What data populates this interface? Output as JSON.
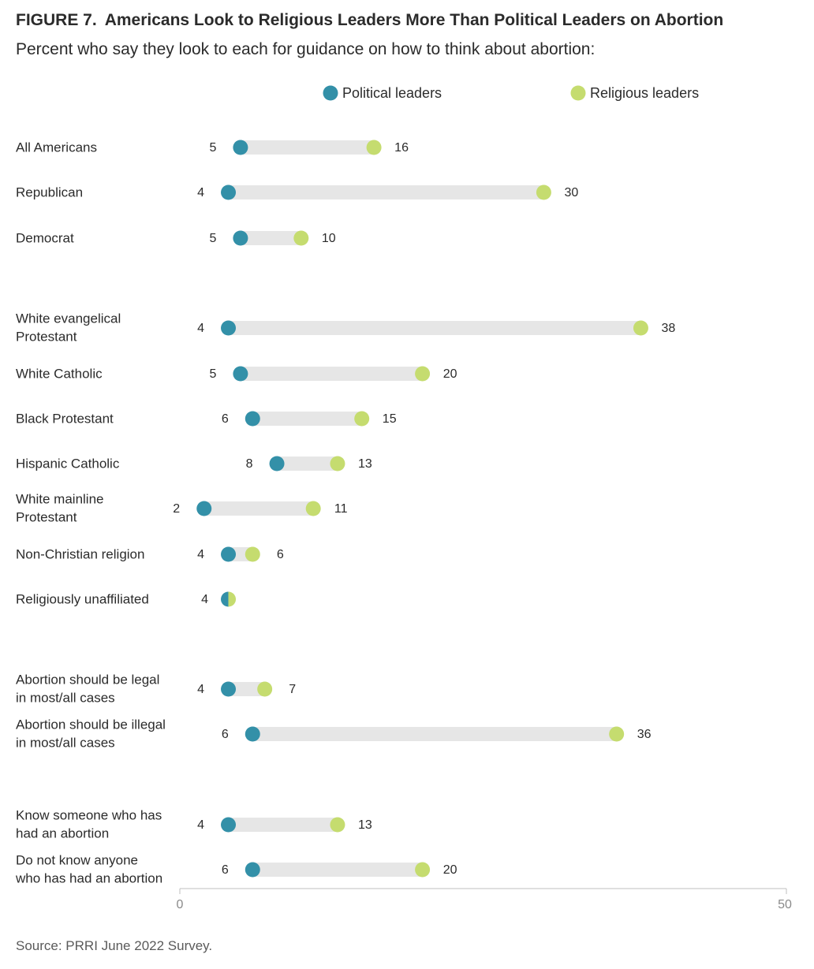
{
  "figure": {
    "label": "FIGURE 7.",
    "title": "Americans Look to Religious Leaders More Than Political Leaders on Abortion",
    "subtitle": "Percent who say they look to each for guidance on how to think about abortion:",
    "source": "Source: PRRI June 2022 Survey."
  },
  "colors": {
    "political": "#3390a8",
    "religious": "#c5dc6f",
    "bar": "#e6e6e6",
    "axis": "#bfbfbf"
  },
  "chart_data": {
    "type": "dumbbell",
    "legend_position": "top-center",
    "xlim": [
      0,
      50
    ],
    "ticks": [
      "0",
      "50"
    ],
    "series": [
      {
        "name": "Political leaders",
        "values": [
          5,
          4,
          5,
          4,
          5,
          6,
          8,
          2,
          4,
          4,
          4,
          6,
          4,
          6
        ]
      },
      {
        "name": "Religious leaders",
        "values": [
          16,
          30,
          10,
          38,
          20,
          15,
          13,
          11,
          6,
          4,
          7,
          36,
          13,
          20
        ]
      }
    ],
    "categories": [
      "All Americans",
      "Republican",
      "Democrat",
      "White evangelical Protestant",
      "White Catholic",
      "Black Protestant",
      "Hispanic Catholic",
      "White mainline Protestant",
      "Non-Christian religion",
      "Religiously unaffiliated",
      "Abortion should be legal in most/all cases",
      "Abortion should be illegal in most/all cases",
      "Know someone who has had an abortion",
      "Do not know anyone who has had an abortion"
    ],
    "category_lines": [
      [
        "All Americans"
      ],
      [
        "Republican"
      ],
      [
        "Democrat"
      ],
      [
        "White evangelical",
        "Protestant"
      ],
      [
        "White Catholic"
      ],
      [
        "Black Protestant"
      ],
      [
        "Hispanic Catholic"
      ],
      [
        "White mainline",
        "Protestant"
      ],
      [
        "Non-Christian religion"
      ],
      [
        "Religiously unaffiliated"
      ],
      [
        "Abortion should be legal",
        "in most/all cases"
      ],
      [
        "Abortion should be illegal",
        "in most/all cases"
      ],
      [
        "Know someone who has",
        "had an abortion"
      ],
      [
        "Do not know anyone",
        "who has had an abortion"
      ]
    ],
    "point_labels": [
      [
        "5",
        "16"
      ],
      [
        "4",
        "30"
      ],
      [
        "5",
        "10"
      ],
      [
        "4",
        "38"
      ],
      [
        "5",
        "20"
      ],
      [
        "6",
        "15"
      ],
      [
        "8",
        "13"
      ],
      [
        "2",
        "11"
      ],
      [
        "4",
        "6"
      ],
      [
        "4",
        ""
      ],
      [
        "4",
        "7"
      ],
      [
        "6",
        "36"
      ],
      [
        "4",
        "13"
      ],
      [
        "6",
        "20"
      ]
    ]
  }
}
